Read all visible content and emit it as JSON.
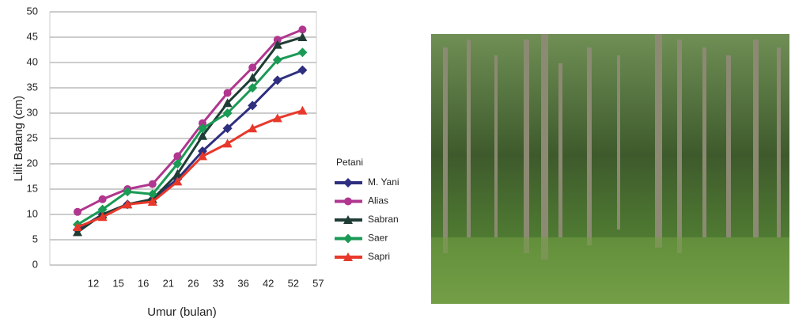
{
  "chart_data": {
    "type": "line",
    "y_label": "Lilit Batang (cm)",
    "x_label": "Umur (bulan)",
    "legend_title": "Petani",
    "categories": [
      "12",
      "15",
      "16",
      "21",
      "26",
      "33",
      "36",
      "42",
      "52",
      "57"
    ],
    "ylim": [
      0,
      50
    ],
    "yticks": [
      0,
      5,
      10,
      15,
      20,
      25,
      30,
      35,
      40,
      45,
      50
    ],
    "grid": true,
    "series": [
      {
        "name": "M. Yani",
        "color": "#2e2f7f",
        "marker": "diamond",
        "values": [
          7,
          10,
          12,
          13,
          17,
          22.5,
          27,
          31.5,
          36.5,
          38.5
        ]
      },
      {
        "name": "Alias",
        "color": "#b0368f",
        "marker": "circle",
        "values": [
          10.5,
          13,
          15,
          16,
          21.5,
          28,
          34,
          39,
          44.5,
          46.5
        ]
      },
      {
        "name": "Sabran",
        "color": "#1f3d35",
        "marker": "triangle",
        "values": [
          6.5,
          10,
          12,
          13,
          18,
          25.5,
          32,
          37,
          43.5,
          45
        ]
      },
      {
        "name": "Saer",
        "color": "#1a9a55",
        "marker": "diamond",
        "values": [
          8,
          11,
          14.5,
          14,
          20,
          27,
          30,
          35,
          40.5,
          42
        ]
      },
      {
        "name": "Sapri",
        "color": "#e8382b",
        "marker": "triangle",
        "values": [
          7.5,
          9.5,
          12,
          12.5,
          16.5,
          21.5,
          24,
          27,
          29,
          30.5
        ]
      }
    ]
  }
}
